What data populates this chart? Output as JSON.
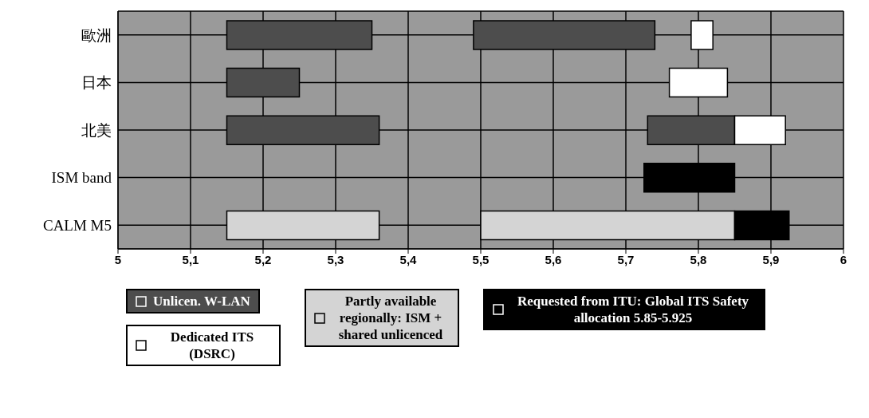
{
  "chart_data": {
    "type": "bar",
    "orientation": "horizontal",
    "categories": [
      "歐洲",
      "日本",
      "北美",
      "ISM band",
      "CALM M5"
    ],
    "series": [
      {
        "name": "Unlicen. W-LAN",
        "color": "#4d4d4d",
        "base": [
          5.15,
          5.15,
          5.15,
          null,
          null
        ],
        "values": [
          0.2,
          0.1,
          0.21,
          null,
          null
        ]
      },
      {
        "color": "#4d4d4d",
        "base": [
          5.49,
          null,
          5.73,
          null,
          null
        ],
        "values": [
          0.25,
          null,
          0.12,
          null,
          null
        ]
      },
      {
        "name": "Dedicated ITS (DSRC)",
        "color": "#ffffff",
        "base": [
          5.79,
          5.76,
          5.85,
          null,
          null
        ],
        "values": [
          0.03,
          0.08,
          0.07,
          null,
          null
        ]
      },
      {
        "name": "Partly available regionally: ISM + shared unlicenced",
        "color": "#d4d4d4",
        "base": [
          null,
          null,
          null,
          null,
          5.15
        ],
        "values": [
          null,
          null,
          null,
          null,
          0.21
        ]
      },
      {
        "color": "#d4d4d4",
        "base": [
          null,
          null,
          null,
          null,
          5.5
        ],
        "values": [
          null,
          null,
          null,
          null,
          0.35
        ]
      },
      {
        "name": "Requested from ITU: Global ITS Safety allocation 5.85-5.925",
        "color": "#000000",
        "base": [
          null,
          null,
          null,
          5.725,
          5.85
        ],
        "values": [
          null,
          null,
          null,
          0.125,
          0.075
        ]
      }
    ],
    "xlim": [
      5,
      6
    ],
    "xticks": [
      5,
      {
        "value": 5.1,
        "label": "5,1"
      },
      {
        "value": 5.2,
        "label": "5,2"
      },
      {
        "value": 5.3,
        "label": "5,3"
      },
      {
        "value": 5.4,
        "label": "5,4"
      },
      {
        "value": 5.5,
        "label": "5,5"
      },
      {
        "value": 5.6,
        "label": "5,6"
      },
      {
        "value": 5.7,
        "label": "5,7"
      },
      {
        "value": 5.8,
        "label": "5,8"
      },
      {
        "value": 5.9,
        "label": "5,9"
      },
      6
    ],
    "grid": true,
    "legend": "bottom"
  }
}
